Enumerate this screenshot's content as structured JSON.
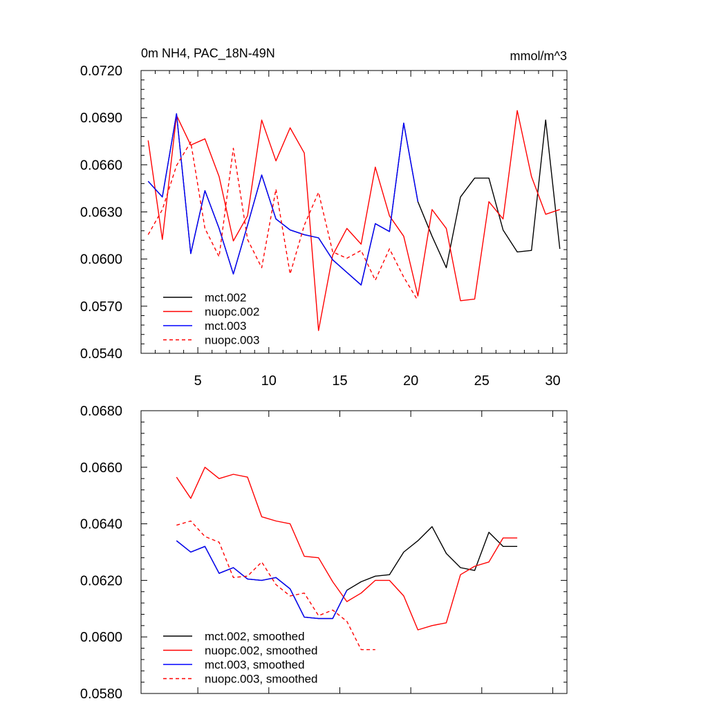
{
  "colors": {
    "mct002": "#000000",
    "nuopc002": "#ff0000",
    "mct003": "#0000ff",
    "nuopc003": "#ff0000"
  },
  "chart_data": [
    {
      "type": "line",
      "title": "0m NH4, PAC_18N-49N",
      "units": "mmol/m^3",
      "xlim": [
        1,
        31
      ],
      "ylim": [
        0.054,
        0.072
      ],
      "yticks": [
        "0.0540",
        "0.0570",
        "0.0600",
        "0.0630",
        "0.0660",
        "0.0690",
        "0.0720"
      ],
      "xticks": [
        "5",
        "10",
        "15",
        "20",
        "25",
        "30"
      ],
      "legend": [
        "mct.002",
        "nuopc.002",
        "mct.003",
        "nuopc.003"
      ],
      "series": [
        {
          "name": "mct.002",
          "color": "#000000",
          "dash": false,
          "x": [
            1.5,
            2.5,
            3.5,
            4.5,
            5.5,
            6.5,
            7.5,
            8.5,
            9.5,
            10.5,
            11.5,
            12.5,
            13.5,
            14.5,
            15.5,
            16.5,
            17.5,
            18.5,
            19.5,
            20.5,
            21.5,
            22.5,
            23.5,
            24.5,
            25.5,
            26.5,
            27.5,
            28.5,
            29.5,
            30.5
          ],
          "y": [
            0.06495,
            0.06395,
            0.06925,
            0.06035,
            0.06435,
            0.06195,
            0.05905,
            0.06215,
            0.06535,
            0.06255,
            0.06185,
            0.06155,
            0.06135,
            0.05995,
            0.05915,
            0.05835,
            0.06225,
            0.06175,
            0.06865,
            0.06365,
            0.06145,
            0.05945,
            0.06395,
            0.06515,
            0.06515,
            0.06185,
            0.06045,
            0.06055,
            0.06885,
            0.06065
          ]
        },
        {
          "name": "nuopc.002",
          "color": "#ff0000",
          "dash": false,
          "x": [
            1.5,
            2.5,
            3.5,
            4.5,
            5.5,
            6.5,
            7.5,
            8.5,
            9.5,
            10.5,
            11.5,
            12.5,
            13.5,
            14.5,
            15.5,
            16.5,
            17.5,
            18.5,
            19.5,
            20.5,
            21.5,
            22.5,
            23.5,
            24.5,
            25.5,
            26.5,
            27.5,
            28.5,
            29.5,
            30.5
          ],
          "y": [
            0.06755,
            0.06125,
            0.06915,
            0.06725,
            0.06765,
            0.06525,
            0.06115,
            0.06275,
            0.06885,
            0.06625,
            0.06835,
            0.06675,
            0.05545,
            0.06025,
            0.06195,
            0.06095,
            0.06585,
            0.06275,
            0.06145,
            0.05765,
            0.06315,
            0.06195,
            0.05735,
            0.05745,
            0.06365,
            0.06255,
            0.06945,
            0.06525,
            0.06285,
            0.06315
          ]
        },
        {
          "name": "mct.003",
          "color": "#0000ff",
          "dash": false,
          "x": [
            1.5,
            2.5,
            3.5,
            4.5,
            5.5,
            6.5,
            7.5,
            8.5,
            9.5,
            10.5,
            11.5,
            12.5,
            13.5,
            14.5,
            15.5,
            16.5,
            17.5,
            18.5,
            19.5,
            20.5
          ],
          "y": [
            0.06495,
            0.06395,
            0.06925,
            0.06035,
            0.06435,
            0.06195,
            0.05905,
            0.06215,
            0.06535,
            0.06255,
            0.06185,
            0.06155,
            0.06135,
            0.05995,
            0.05915,
            0.05835,
            0.06225,
            0.06175,
            0.06865,
            0.06365
          ]
        },
        {
          "name": "nuopc.003",
          "color": "#ff0000",
          "dash": true,
          "x": [
            1.5,
            2.5,
            3.5,
            4.5,
            5.5,
            6.5,
            7.5,
            8.5,
            9.5,
            10.5,
            11.5,
            12.5,
            13.5,
            14.5,
            15.5,
            16.5,
            17.5,
            18.5,
            19.5,
            20.5
          ],
          "y": [
            0.06155,
            0.06315,
            0.06595,
            0.06745,
            0.06195,
            0.06015,
            0.06705,
            0.06125,
            0.05945,
            0.06445,
            0.05905,
            0.06215,
            0.06425,
            0.06045,
            0.06005,
            0.06055,
            0.05865,
            0.06065,
            0.05885,
            0.05735
          ]
        }
      ]
    },
    {
      "type": "line",
      "xlim": [
        1,
        31
      ],
      "ylim": [
        0.058,
        0.068
      ],
      "yticks": [
        "0.0580",
        "0.0600",
        "0.0620",
        "0.0640",
        "0.0660",
        "0.0680"
      ],
      "legend": [
        "mct.002, smoothed",
        "nuopc.002, smoothed",
        "mct.003, smoothed",
        "nuopc.003, smoothed"
      ],
      "series": [
        {
          "name": "mct.002, smoothed",
          "color": "#000000",
          "dash": false,
          "x": [
            3.5,
            4.5,
            5.5,
            6.5,
            7.5,
            8.5,
            9.5,
            10.5,
            11.5,
            12.5,
            13.5,
            14.5,
            15.5,
            16.5,
            17.5,
            18.5,
            19.5,
            20.5,
            21.5,
            22.5,
            23.5,
            24.5,
            25.5,
            26.5,
            27.5
          ],
          "y": [
            0.0634,
            0.063,
            0.0632,
            0.06225,
            0.06245,
            0.06205,
            0.062,
            0.0621,
            0.0617,
            0.0607,
            0.06065,
            0.06065,
            0.06165,
            0.06195,
            0.06215,
            0.0622,
            0.063,
            0.0634,
            0.0639,
            0.06295,
            0.06245,
            0.06235,
            0.0637,
            0.0632,
            0.0632
          ]
        },
        {
          "name": "nuopc.002, smoothed",
          "color": "#ff0000",
          "dash": false,
          "x": [
            3.5,
            4.5,
            5.5,
            6.5,
            7.5,
            8.5,
            9.5,
            10.5,
            11.5,
            12.5,
            13.5,
            14.5,
            15.5,
            16.5,
            17.5,
            18.5,
            19.5,
            20.5,
            21.5,
            22.5,
            23.5,
            24.5,
            25.5,
            26.5,
            27.5
          ],
          "y": [
            0.06565,
            0.0649,
            0.066,
            0.0656,
            0.06575,
            0.06565,
            0.06425,
            0.0641,
            0.064,
            0.06285,
            0.0628,
            0.06195,
            0.06125,
            0.06155,
            0.062,
            0.062,
            0.06145,
            0.06025,
            0.0604,
            0.0605,
            0.0622,
            0.0625,
            0.06265,
            0.0635,
            0.0635
          ]
        },
        {
          "name": "mct.003, smoothed",
          "color": "#0000ff",
          "dash": false,
          "x": [
            3.5,
            4.5,
            5.5,
            6.5,
            7.5,
            8.5,
            9.5,
            10.5,
            11.5,
            12.5,
            13.5,
            14.5,
            15.5
          ],
          "y": [
            0.0634,
            0.063,
            0.0632,
            0.06225,
            0.06245,
            0.06205,
            0.062,
            0.0621,
            0.0617,
            0.0607,
            0.06065,
            0.06065,
            0.06165
          ]
        },
        {
          "name": "nuopc.003, smoothed",
          "color": "#ff0000",
          "dash": true,
          "x": [
            3.5,
            4.5,
            5.5,
            6.5,
            7.5,
            8.5,
            9.5,
            10.5,
            11.5,
            12.5,
            13.5,
            14.5,
            15.5,
            16.5,
            17.5
          ],
          "y": [
            0.06395,
            0.0641,
            0.06355,
            0.06335,
            0.0621,
            0.06215,
            0.06265,
            0.06185,
            0.06145,
            0.06155,
            0.06075,
            0.06095,
            0.06055,
            0.05955,
            0.05955
          ]
        }
      ]
    }
  ]
}
